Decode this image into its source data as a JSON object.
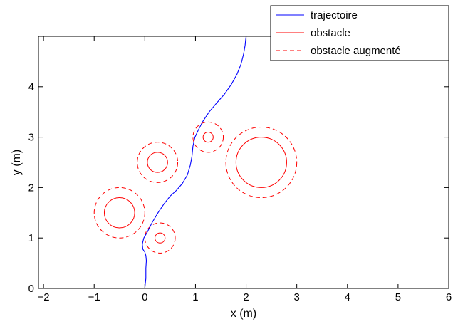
{
  "chart_data": {
    "type": "line",
    "title": "",
    "xlabel": "x (m)",
    "ylabel": "y (m)",
    "xlim": [
      -2.1,
      6
    ],
    "ylim": [
      0,
      5
    ],
    "xticks": [
      -2,
      -1,
      0,
      1,
      2,
      3,
      4,
      5,
      6
    ],
    "yticks": [
      0,
      1,
      2,
      3,
      4
    ],
    "xtick_labels": [
      "−2",
      "−1",
      "0",
      "1",
      "2",
      "3",
      "4",
      "5",
      "6"
    ],
    "ytick_labels": [
      "0",
      "1",
      "2",
      "3",
      "4"
    ],
    "grid": false,
    "legend": {
      "placement": "top-right",
      "entries": [
        {
          "label": "trajectoire",
          "color": "#0000ff",
          "style": "solid"
        },
        {
          "label": "obstacle",
          "color": "#ff0000",
          "style": "solid"
        },
        {
          "label": "obstacle augmenté",
          "color": "#ff0000",
          "style": "dashed"
        }
      ]
    },
    "series": [
      {
        "name": "trajectoire",
        "color": "#0000ff",
        "x": [
          0.0,
          0.02,
          0.02,
          0.03,
          0.02,
          0.0,
          -0.04,
          -0.05,
          -0.02,
          0.05,
          0.14,
          0.26,
          0.38,
          0.5,
          0.62,
          0.74,
          0.84,
          0.9,
          0.93,
          0.95,
          0.99,
          1.06,
          1.15,
          1.27,
          1.42,
          1.57,
          1.71,
          1.82,
          1.9,
          1.95,
          1.98,
          1.99,
          2.0
        ],
        "y": [
          0.0,
          0.2,
          0.4,
          0.55,
          0.65,
          0.72,
          0.78,
          0.88,
          1.0,
          1.12,
          1.3,
          1.5,
          1.68,
          1.83,
          1.94,
          2.08,
          2.25,
          2.45,
          2.62,
          2.82,
          3.0,
          3.15,
          3.32,
          3.5,
          3.68,
          3.85,
          4.05,
          4.25,
          4.45,
          4.65,
          4.82,
          4.92,
          5.0
        ]
      }
    ],
    "obstacles": [
      {
        "label": "obstacle",
        "cx": -0.5,
        "cy": 1.5,
        "r": 0.3,
        "r_augmented": 0.5
      },
      {
        "label": "obstacle",
        "cx": 0.3,
        "cy": 1.0,
        "r": 0.1,
        "r_augmented": 0.3
      },
      {
        "label": "obstacle",
        "cx": 0.25,
        "cy": 2.5,
        "r": 0.2,
        "r_augmented": 0.4
      },
      {
        "label": "obstacle",
        "cx": 1.25,
        "cy": 3.0,
        "r": 0.1,
        "r_augmented": 0.3
      },
      {
        "label": "obstacle",
        "cx": 2.3,
        "cy": 2.5,
        "r": 0.5,
        "r_augmented": 0.7
      }
    ]
  }
}
